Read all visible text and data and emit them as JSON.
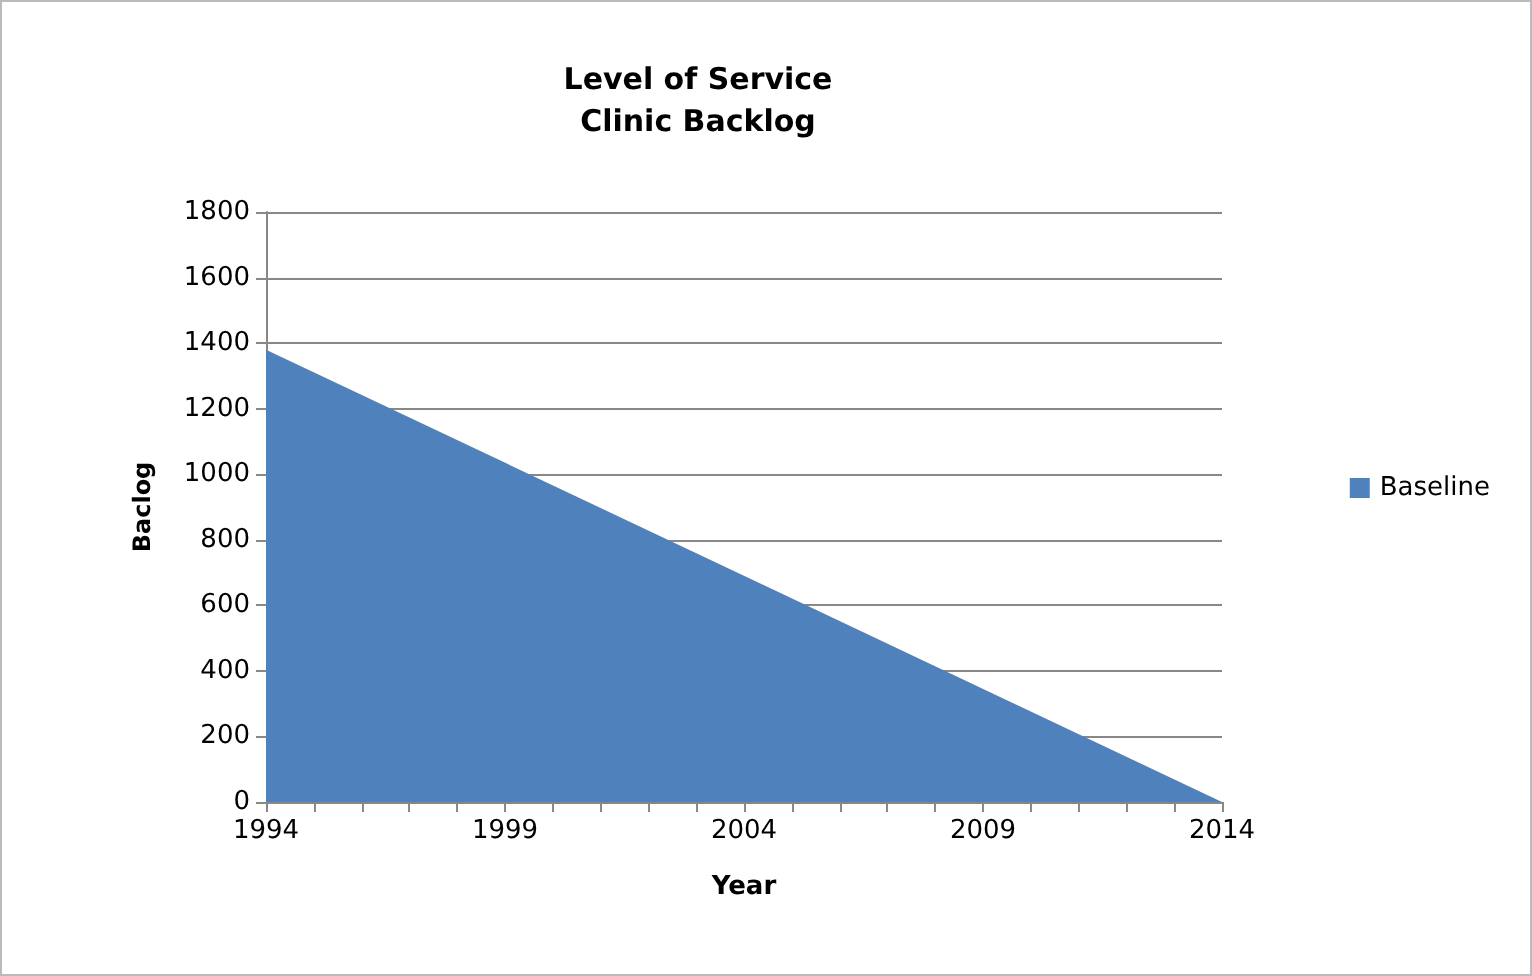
{
  "chart_data": {
    "type": "area",
    "title": "Level of Service",
    "subtitle": "Clinic Backlog",
    "xlabel": "Year",
    "ylabel": "Baclog",
    "x": [
      1994,
      2014
    ],
    "series": [
      {
        "name": "Baseline",
        "color": "#4f81bd",
        "values": [
          1380,
          0
        ]
      }
    ],
    "xlim": [
      1994,
      2014
    ],
    "xticks": [
      1994,
      {
        "value": 1995,
        "label": null
      },
      {
        "value": 1996,
        "label": null
      },
      {
        "value": 1997,
        "label": null
      },
      {
        "value": 1998,
        "label": null
      },
      1999,
      {
        "value": 2000,
        "label": null
      },
      {
        "value": 2001,
        "label": null
      },
      {
        "value": 2002,
        "label": null
      },
      {
        "value": 2003,
        "label": null
      },
      2004,
      {
        "value": 2005,
        "label": null
      },
      {
        "value": 2006,
        "label": null
      },
      {
        "value": 2007,
        "label": null
      },
      {
        "value": 2008,
        "label": null
      },
      2009,
      {
        "value": 2010,
        "label": null
      },
      {
        "value": 2011,
        "label": null
      },
      {
        "value": 2012,
        "label": null
      },
      {
        "value": 2013,
        "label": null
      },
      2014
    ],
    "ylim": [
      0,
      1800
    ],
    "yticks": [
      0,
      200,
      400,
      600,
      800,
      1000,
      1200,
      1400,
      1600,
      1800
    ],
    "grid": "y",
    "legend": "right"
  }
}
